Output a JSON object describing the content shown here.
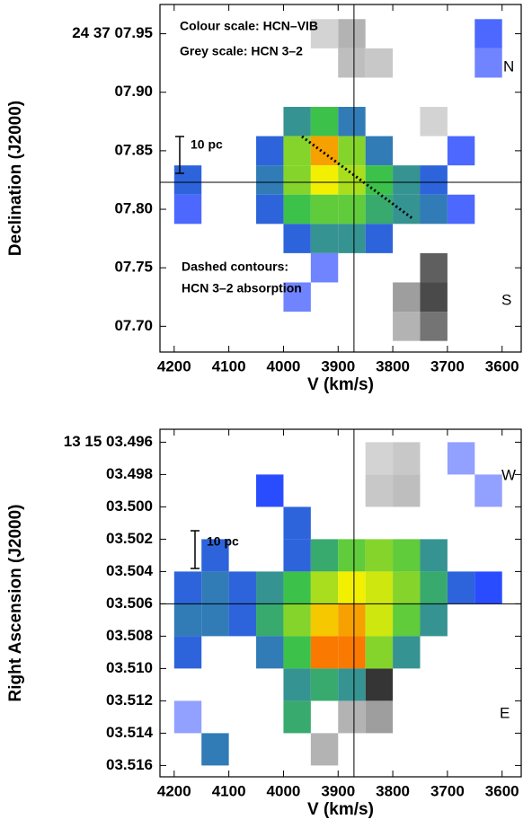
{
  "chart_data": [
    {
      "type": "heatmap",
      "xlabel": "V (km/s)",
      "ylabel": "Declination (J2000)",
      "xlim": [
        4226,
        3565
      ],
      "ylim": [
        7.678,
        7.975
      ],
      "xticks": [
        4200,
        4100,
        4000,
        3900,
        3800,
        3700,
        3600
      ],
      "yticks": [
        {
          "value": 7.95,
          "label": "24 37 07.95"
        },
        {
          "value": 7.9,
          "label": "07.90"
        },
        {
          "value": 7.85,
          "label": "07.85"
        },
        {
          "value": 7.8,
          "label": "07.80"
        },
        {
          "value": 7.75,
          "label": "07.75"
        },
        {
          "value": 7.7,
          "label": "07.70"
        }
      ],
      "reference_lines": {
        "x": 3871,
        "y": 7.823
      },
      "annotations": [
        "Colour scale: HCN–VIB",
        "Grey scale: HCN 3–2",
        "N",
        "10 pc",
        "Dashed contours:",
        "HCN 3–2 absorption",
        "S"
      ],
      "colormap": [
        "#d8d8ff",
        "#2a4cff",
        "#3cc24a",
        "#f2f000",
        "#ff2a00"
      ],
      "grey_colormap": [
        "#f2f2f2",
        "#202020"
      ],
      "heatmap": {
        "x": [
          4175,
          4125,
          4075,
          4025,
          3975,
          3925,
          3875,
          3825,
          3775,
          3725,
          3675,
          3625
        ],
        "y": [
          7.95,
          7.925,
          7.9,
          7.875,
          7.85,
          7.825,
          7.8,
          7.775,
          7.75,
          7.725,
          7.7
        ],
        "z": [
          [
            null,
            null,
            null,
            null,
            null,
            null,
            null,
            null,
            null,
            null,
            null,
            0.2
          ],
          [
            null,
            null,
            null,
            null,
            null,
            null,
            null,
            null,
            null,
            null,
            null,
            0.15
          ],
          [
            null,
            null,
            null,
            null,
            null,
            null,
            null,
            null,
            null,
            null,
            null,
            null
          ],
          [
            null,
            null,
            null,
            null,
            0.4,
            0.5,
            0.35,
            null,
            null,
            null,
            null,
            null
          ],
          [
            null,
            null,
            null,
            0.3,
            0.6,
            0.85,
            0.6,
            0.35,
            null,
            null,
            0.2,
            null
          ],
          [
            0.3,
            null,
            null,
            0.35,
            0.6,
            0.75,
            0.65,
            0.5,
            0.4,
            0.3,
            null,
            null
          ],
          [
            0.2,
            null,
            null,
            0.3,
            0.5,
            0.55,
            0.55,
            0.45,
            0.4,
            0.35,
            0.2,
            null
          ],
          [
            null,
            null,
            null,
            null,
            0.3,
            0.4,
            0.4,
            0.3,
            null,
            null,
            null,
            null
          ],
          [
            null,
            null,
            null,
            null,
            null,
            0.15,
            null,
            null,
            null,
            null,
            null,
            null
          ],
          [
            null,
            null,
            null,
            null,
            0.15,
            null,
            null,
            null,
            null,
            null,
            null,
            null
          ],
          [
            null,
            null,
            null,
            null,
            null,
            null,
            null,
            null,
            null,
            null,
            null,
            null
          ]
        ]
      },
      "grey_cells": [
        {
          "x": 3725,
          "y": 7.75,
          "value": 0.7
        },
        {
          "x": 3725,
          "y": 7.725,
          "value": 0.8
        },
        {
          "x": 3725,
          "y": 7.7,
          "value": 0.6
        },
        {
          "x": 3775,
          "y": 7.725,
          "value": 0.4
        },
        {
          "x": 3775,
          "y": 7.7,
          "value": 0.3
        },
        {
          "x": 3875,
          "y": 7.95,
          "value": 0.3
        },
        {
          "x": 3875,
          "y": 7.925,
          "value": 0.25
        },
        {
          "x": 3825,
          "y": 7.925,
          "value": 0.2
        },
        {
          "x": 3725,
          "y": 7.875,
          "value": 0.15
        },
        {
          "x": 3925,
          "y": 7.95,
          "value": 0.15
        }
      ]
    },
    {
      "type": "heatmap",
      "xlabel": "V (km/s)",
      "ylabel": "Right Ascension (J2000)",
      "xlim": [
        4226,
        3565
      ],
      "ylim": [
        3.5167,
        3.4952
      ],
      "xticks": [
        4200,
        4100,
        4000,
        3900,
        3800,
        3700,
        3600
      ],
      "yticks": [
        {
          "value": 3.496,
          "label": "13 15 03.496"
        },
        {
          "value": 3.498,
          "label": "03.498"
        },
        {
          "value": 3.5,
          "label": "03.500"
        },
        {
          "value": 3.502,
          "label": "03.502"
        },
        {
          "value": 3.504,
          "label": "03.504"
        },
        {
          "value": 3.506,
          "label": "03.506"
        },
        {
          "value": 3.508,
          "label": "03.508"
        },
        {
          "value": 3.51,
          "label": "03.510"
        },
        {
          "value": 3.512,
          "label": "03.512"
        },
        {
          "value": 3.514,
          "label": "03.514"
        },
        {
          "value": 3.516,
          "label": "03.516"
        }
      ],
      "reference_lines": {
        "x": 3871,
        "y": 3.506
      },
      "annotations": [
        "W",
        "10 pc",
        "E"
      ],
      "colormap": [
        "#d8d8ff",
        "#2a4cff",
        "#3cc24a",
        "#f2f000",
        "#ff2a00"
      ],
      "grey_colormap": [
        "#f2f2f2",
        "#202020"
      ],
      "heatmap": {
        "x": [
          4175,
          4125,
          4075,
          4025,
          3975,
          3925,
          3875,
          3825,
          3775,
          3725,
          3675,
          3625
        ],
        "y": [
          3.497,
          3.499,
          3.501,
          3.503,
          3.505,
          3.507,
          3.509,
          3.511,
          3.513,
          3.515
        ],
        "z": [
          [
            null,
            null,
            null,
            null,
            null,
            null,
            null,
            null,
            null,
            null,
            0.1,
            null
          ],
          [
            null,
            null,
            null,
            0.25,
            null,
            null,
            null,
            null,
            null,
            null,
            null,
            0.1
          ],
          [
            null,
            null,
            null,
            null,
            0.3,
            null,
            null,
            null,
            null,
            null,
            null,
            null
          ],
          [
            null,
            0.3,
            null,
            null,
            0.3,
            0.45,
            0.55,
            0.6,
            0.55,
            0.4,
            null,
            null
          ],
          [
            0.3,
            0.35,
            0.3,
            0.4,
            0.5,
            0.65,
            0.75,
            0.7,
            0.6,
            0.45,
            0.3,
            0.25
          ],
          [
            0.35,
            0.35,
            0.3,
            0.45,
            0.6,
            0.8,
            0.85,
            0.7,
            0.55,
            0.4,
            null,
            null
          ],
          [
            0.3,
            null,
            null,
            0.35,
            0.5,
            0.9,
            0.9,
            0.6,
            0.4,
            null,
            null,
            null
          ],
          [
            null,
            null,
            null,
            null,
            0.4,
            0.45,
            0.4,
            null,
            null,
            null,
            null,
            null
          ],
          [
            0.1,
            null,
            null,
            null,
            0.45,
            null,
            null,
            null,
            null,
            null,
            null,
            null
          ],
          [
            null,
            0.35,
            null,
            null,
            null,
            null,
            null,
            null,
            null,
            null,
            null,
            null
          ]
        ]
      },
      "grey_cells": [
        {
          "x": 3825,
          "y": 3.511,
          "value": 0.9
        },
        {
          "x": 3825,
          "y": 3.513,
          "value": 0.4
        },
        {
          "x": 3875,
          "y": 3.513,
          "value": 0.3
        },
        {
          "x": 3925,
          "y": 3.515,
          "value": 0.3
        },
        {
          "x": 3775,
          "y": 3.497,
          "value": 0.2
        },
        {
          "x": 3775,
          "y": 3.499,
          "value": 0.25
        },
        {
          "x": 3825,
          "y": 3.499,
          "value": 0.2
        },
        {
          "x": 3825,
          "y": 3.497,
          "value": 0.15
        }
      ]
    }
  ]
}
